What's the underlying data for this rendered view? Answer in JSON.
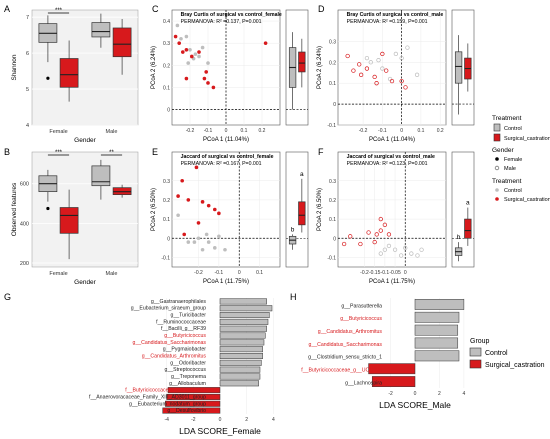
{
  "colors": {
    "control": "#bebebe",
    "castration": "#d7191c",
    "panel_bg": "#ffffff",
    "grid": "#ebebeb",
    "axis": "#333333"
  },
  "panel_letters": [
    "A",
    "B",
    "C",
    "D",
    "E",
    "F",
    "G",
    "H"
  ],
  "legend": {
    "treatment_title": "Treatment",
    "gender_title": "Gender",
    "control": "Control",
    "castration": "Surgical_castration",
    "female": "Female",
    "male": "Male",
    "group_title": "Group"
  },
  "chart_data": [
    {
      "id": "A",
      "type": "box",
      "ylabel": "Shannon",
      "xlabel": "Gender",
      "categories": [
        "Female",
        "Male"
      ],
      "ylim": [
        4,
        7.2
      ],
      "yticks": [
        4,
        5,
        6,
        7
      ],
      "series": [
        {
          "name": "Control",
          "boxes": [
            {
              "q1": 6.3,
              "med": 6.55,
              "q3": 6.82,
              "lo": 5.75,
              "hi": 7.05,
              "outliers": [
                5.3
              ]
            },
            {
              "q1": 6.45,
              "med": 6.6,
              "q3": 6.85,
              "lo": 6.15,
              "hi": 7.1,
              "outliers": []
            }
          ]
        },
        {
          "name": "Surgical_castration",
          "boxes": [
            {
              "q1": 5.05,
              "med": 5.4,
              "q3": 5.85,
              "lo": 4.65,
              "hi": 6.35,
              "outliers": []
            },
            {
              "q1": 5.9,
              "med": 6.25,
              "q3": 6.7,
              "lo": 5.4,
              "hi": 6.95,
              "outliers": []
            }
          ]
        }
      ],
      "significance": [
        "***",
        ""
      ]
    },
    {
      "id": "B",
      "type": "box",
      "ylabel": "Observed features",
      "xlabel": "Gender",
      "categories": [
        "Female",
        "Male"
      ],
      "ylim": [
        180,
        760
      ],
      "yticks": [
        200,
        400,
        600
      ],
      "series": [
        {
          "name": "Control",
          "boxes": [
            {
              "q1": 560,
              "med": 600,
              "q3": 640,
              "lo": 510,
              "hi": 670,
              "outliers": [
                475
              ]
            },
            {
              "q1": 590,
              "med": 610,
              "q3": 690,
              "lo": 520,
              "hi": 720,
              "outliers": []
            }
          ]
        },
        {
          "name": "Surgical_castration",
          "boxes": [
            {
              "q1": 350,
              "med": 440,
              "q3": 480,
              "lo": 220,
              "hi": 570,
              "outliers": []
            },
            {
              "q1": 545,
              "med": 560,
              "q3": 580,
              "lo": 530,
              "hi": 595,
              "outliers": []
            }
          ]
        }
      ],
      "significance": [
        "***",
        "**"
      ]
    },
    {
      "id": "C",
      "type": "scatter",
      "title": "Bray Curtis of surgical vs control_female",
      "subtitle": "PERMANOVA: R² =0.137, P=0.001",
      "xlabel": "PCoA 1 (11.04%)",
      "ylabel": "PCoA 2 (6.24%)",
      "xlim": [
        -0.3,
        0.3
      ],
      "ylim": [
        -0.07,
        0.45
      ],
      "xticks": [
        -0.2,
        -0.1,
        0.0,
        0.1,
        0.2
      ],
      "yticks": [
        0.0,
        0.1,
        0.2,
        0.3,
        0.4
      ],
      "points_control": [
        [
          -0.27,
          0.38
        ],
        [
          -0.25,
          0.32
        ],
        [
          -0.22,
          0.33
        ],
        [
          -0.2,
          0.27
        ],
        [
          -0.17,
          0.25
        ],
        [
          -0.15,
          0.24
        ],
        [
          -0.13,
          0.28
        ],
        [
          -0.21,
          0.21
        ],
        [
          -0.1,
          0.21
        ],
        [
          -0.18,
          0.23
        ]
      ],
      "points_castration": [
        [
          -0.28,
          0.33
        ],
        [
          -0.26,
          0.3
        ],
        [
          -0.24,
          0.26
        ],
        [
          -0.22,
          0.27
        ],
        [
          -0.19,
          0.24
        ],
        [
          -0.15,
          0.26
        ],
        [
          -0.12,
          0.14
        ],
        [
          -0.11,
          0.17
        ],
        [
          -0.1,
          0.12
        ],
        [
          -0.07,
          0.1
        ],
        [
          -0.22,
          0.14
        ],
        [
          0.22,
          0.3
        ]
      ],
      "side_box": {
        "ylim": [
          -0.07,
          0.45
        ],
        "control": {
          "q1": 0.1,
          "med": 0.19,
          "q3": 0.28,
          "lo": 0.0,
          "hi": 0.35
        },
        "castration": {
          "q1": 0.17,
          "med": 0.21,
          "q3": 0.26,
          "lo": 0.1,
          "hi": 0.32
        },
        "labels": [
          "",
          ""
        ]
      }
    },
    {
      "id": "D",
      "type": "scatter",
      "title": "Bray Curtis of surgical vs control_male",
      "subtitle": "PERMANOVA: R² =0.159, P=0.001",
      "xlabel": "PCoA 1 (11.04%)",
      "ylabel": "PCoA 2 (6.24%)",
      "xlim": [
        -0.33,
        0.23
      ],
      "ylim": [
        -0.1,
        0.45
      ],
      "xticks": [
        -0.2,
        -0.1,
        0.0,
        0.1,
        0.2
      ],
      "yticks": [
        -0.1,
        0.0,
        0.1,
        0.2,
        0.3
      ],
      "points_control": [
        [
          -0.18,
          0.22
        ],
        [
          -0.16,
          0.2
        ],
        [
          -0.12,
          0.21
        ],
        [
          -0.1,
          0.17
        ],
        [
          -0.06,
          0.12
        ],
        [
          -0.03,
          0.24
        ],
        [
          0.0,
          0.22
        ],
        [
          0.03,
          0.27
        ],
        [
          0.08,
          0.14
        ]
      ],
      "points_castration": [
        [
          -0.28,
          0.23
        ],
        [
          -0.25,
          0.16
        ],
        [
          -0.22,
          0.19
        ],
        [
          -0.21,
          0.14
        ],
        [
          -0.18,
          0.17
        ],
        [
          -0.14,
          0.13
        ],
        [
          -0.13,
          0.1
        ],
        [
          -0.1,
          0.24
        ],
        [
          -0.08,
          0.16
        ],
        [
          -0.05,
          0.11
        ],
        [
          0.0,
          0.11
        ],
        [
          0.02,
          0.08
        ]
      ],
      "side_box": {
        "ylim": [
          -0.1,
          0.45
        ],
        "control": {
          "q1": 0.1,
          "med": 0.18,
          "q3": 0.25,
          "lo": -0.05,
          "hi": 0.33
        },
        "castration": {
          "q1": 0.12,
          "med": 0.17,
          "q3": 0.22,
          "lo": 0.06,
          "hi": 0.29
        },
        "labels": [
          "",
          ""
        ]
      }
    },
    {
      "id": "E",
      "type": "scatter",
      "title": "Jaccard of surgical vs control_female",
      "subtitle": "PERMANOVA: R² =0.167, P=0.001",
      "xlabel": "PCoA 1 (11.75%)",
      "ylabel": "PCoA 2 (6.50%)",
      "xlim": [
        -0.33,
        0.2
      ],
      "ylim": [
        -0.15,
        0.45
      ],
      "xticks": [
        -0.2,
        -0.1,
        0.0,
        0.1
      ],
      "yticks": [
        -0.1,
        0.0,
        0.1,
        0.2,
        0.3
      ],
      "points_control": [
        [
          -0.3,
          0.12
        ],
        [
          -0.25,
          -0.02
        ],
        [
          -0.22,
          -0.02
        ],
        [
          -0.18,
          -0.06
        ],
        [
          -0.15,
          -0.02
        ],
        [
          -0.12,
          -0.05
        ],
        [
          -0.07,
          -0.06
        ],
        [
          -0.1,
          0.01
        ],
        [
          -0.2,
          0.0
        ],
        [
          -0.16,
          0.02
        ]
      ],
      "points_castration": [
        [
          -0.28,
          0.3
        ],
        [
          -0.25,
          0.2
        ],
        [
          -0.21,
          0.37
        ],
        [
          -0.18,
          0.19
        ],
        [
          -0.15,
          0.17
        ],
        [
          -0.12,
          0.15
        ],
        [
          -0.1,
          0.13
        ],
        [
          -0.2,
          0.08
        ],
        [
          -0.3,
          0.22
        ],
        [
          -0.27,
          0.02
        ]
      ],
      "side_box": {
        "ylim": [
          -0.15,
          0.45
        ],
        "control": {
          "q1": -0.03,
          "med": -0.01,
          "q3": 0.01,
          "lo": -0.06,
          "hi": 0.02
        },
        "castration": {
          "q1": 0.07,
          "med": 0.12,
          "q3": 0.19,
          "lo": 0.03,
          "hi": 0.31
        },
        "labels": [
          "b",
          "a"
        ]
      }
    },
    {
      "id": "F",
      "type": "scatter",
      "title": "Jaccard of surgical vs control_male",
      "subtitle": "PERMANOVA: R² =0.123, P=0.001",
      "xlabel": "PCoA 1 (11.75%)",
      "ylabel": "PCoA 2 (6.50%)",
      "xlim": [
        -0.33,
        0.2
      ],
      "ylim": [
        -0.15,
        0.45
      ],
      "xticks": [
        -0.2,
        -0.15,
        -0.1,
        -0.05,
        0.0
      ],
      "yticks": [
        -0.1,
        0.0,
        0.1,
        0.2,
        0.3
      ],
      "points_control": [
        [
          -0.12,
          -0.08
        ],
        [
          -0.1,
          -0.06
        ],
        [
          -0.08,
          -0.04
        ],
        [
          -0.05,
          -0.06
        ],
        [
          -0.02,
          -0.09
        ],
        [
          0.0,
          -0.05
        ],
        [
          0.03,
          -0.08
        ],
        [
          0.06,
          -0.09
        ],
        [
          0.08,
          -0.06
        ]
      ],
      "points_castration": [
        [
          -0.3,
          -0.03
        ],
        [
          -0.27,
          0.01
        ],
        [
          -0.22,
          -0.03
        ],
        [
          -0.18,
          0.03
        ],
        [
          -0.14,
          0.02
        ],
        [
          -0.12,
          0.04
        ],
        [
          -0.1,
          0.07
        ],
        [
          -0.08,
          0.02
        ],
        [
          -0.15,
          -0.02
        ],
        [
          -0.12,
          0.1
        ]
      ],
      "side_box": {
        "ylim": [
          -0.15,
          0.45
        ],
        "control": {
          "q1": -0.09,
          "med": -0.07,
          "q3": -0.05,
          "lo": -0.12,
          "hi": -0.02
        },
        "castration": {
          "q1": 0.0,
          "med": 0.04,
          "q3": 0.1,
          "lo": -0.04,
          "hi": 0.16
        },
        "labels": [
          "b",
          "a"
        ]
      }
    },
    {
      "id": "G",
      "type": "bar",
      "orientation": "horizontal",
      "xlabel": "LDA SCORE_Female",
      "xlim": [
        -4.5,
        4.5
      ],
      "xticks": [
        -4,
        -2,
        0,
        2,
        4
      ],
      "categories": [
        "g__Gastranaerophilales",
        "g__Eubacterium_siraeum_group",
        "g__Turicibacter",
        "f__Ruminococcaceae",
        "f__Bacilli_g__RF39",
        "g__Butyricicoccus",
        "g__Candidatus_Saccharimonas",
        "g__Pygmaiobacter",
        "g__Candidatus_Arthromitus",
        "g__Odoribacter",
        "g__Streptococcus",
        "g__Treponema",
        "g__Allobaculum",
        "f__Butyricicoccaceae_g__UCG008",
        "f__Anaerovoracaceae_Family_XIII_AD3011_group",
        "g__Eubacterium_nodatum_group",
        "g__Desulfovibrio"
      ],
      "values": [
        3.5,
        3.9,
        3.7,
        3.6,
        3.5,
        3.4,
        3.3,
        3.2,
        3.2,
        3.1,
        3.0,
        3.0,
        2.9,
        -3.9,
        -4.0,
        -4.1,
        -4.3
      ],
      "highlight": [
        5,
        6,
        8,
        13
      ]
    },
    {
      "id": "H",
      "type": "bar",
      "orientation": "horizontal",
      "xlabel": "LDA SCORE_Male",
      "xlim": [
        -4.5,
        4.5
      ],
      "xticks": [
        -2,
        0,
        2,
        4
      ],
      "categories": [
        "g__Parasutterella",
        "g__Butyricicoccus",
        "g__Candidatus_Arthromitus",
        "g__Candidatus_Saccharimonas",
        "g__Clostridium_sensu_stricto_1",
        "f__Butyricicoccaceae_g__UCG008",
        "g__Lachnospira"
      ],
      "values": [
        4.0,
        3.6,
        3.5,
        3.5,
        3.6,
        -3.8,
        -3.5
      ],
      "highlight": [
        1,
        2,
        3,
        5
      ]
    }
  ]
}
